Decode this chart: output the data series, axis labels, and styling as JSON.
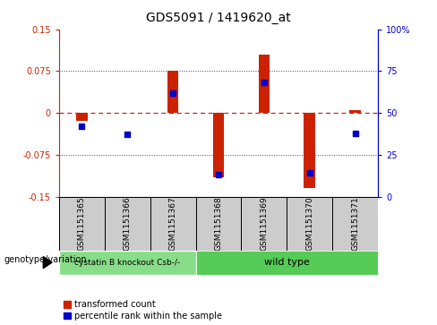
{
  "title": "GDS5091 / 1419620_at",
  "samples": [
    "GSM1151365",
    "GSM1151366",
    "GSM1151367",
    "GSM1151368",
    "GSM1151369",
    "GSM1151370",
    "GSM1151371"
  ],
  "transformed_count": [
    -0.015,
    0.0,
    0.075,
    -0.115,
    0.105,
    -0.135,
    0.005
  ],
  "percentile_rank": [
    42,
    37,
    62,
    13,
    68,
    14,
    38
  ],
  "ylim_left": [
    -0.15,
    0.15
  ],
  "ylim_right": [
    0,
    100
  ],
  "yticks_left": [
    -0.15,
    -0.075,
    0,
    0.075,
    0.15
  ],
  "yticks_right": [
    0,
    25,
    50,
    75,
    100
  ],
  "bar_color": "#cc2200",
  "dot_color": "#0000cc",
  "zero_line_color": "#cc2222",
  "grid_color": "#444444",
  "groups": [
    {
      "label": "cystatin B knockout Csb-/-",
      "start": 0,
      "end": 3,
      "color": "#88dd88"
    },
    {
      "label": "wild type",
      "start": 3,
      "end": 7,
      "color": "#55cc55"
    }
  ],
  "sample_box_color": "#cccccc",
  "genotype_label": "genotype/variation",
  "legend_items": [
    {
      "label": "transformed count",
      "color": "#cc2200"
    },
    {
      "label": "percentile rank within the sample",
      "color": "#0000cc"
    }
  ],
  "bar_width": 0.25,
  "dot_size": 25,
  "title_fontsize": 10,
  "tick_fontsize": 7,
  "label_fontsize": 6.5,
  "group_fontsize_small": 6.5,
  "group_fontsize_large": 8,
  "legend_fontsize": 7
}
